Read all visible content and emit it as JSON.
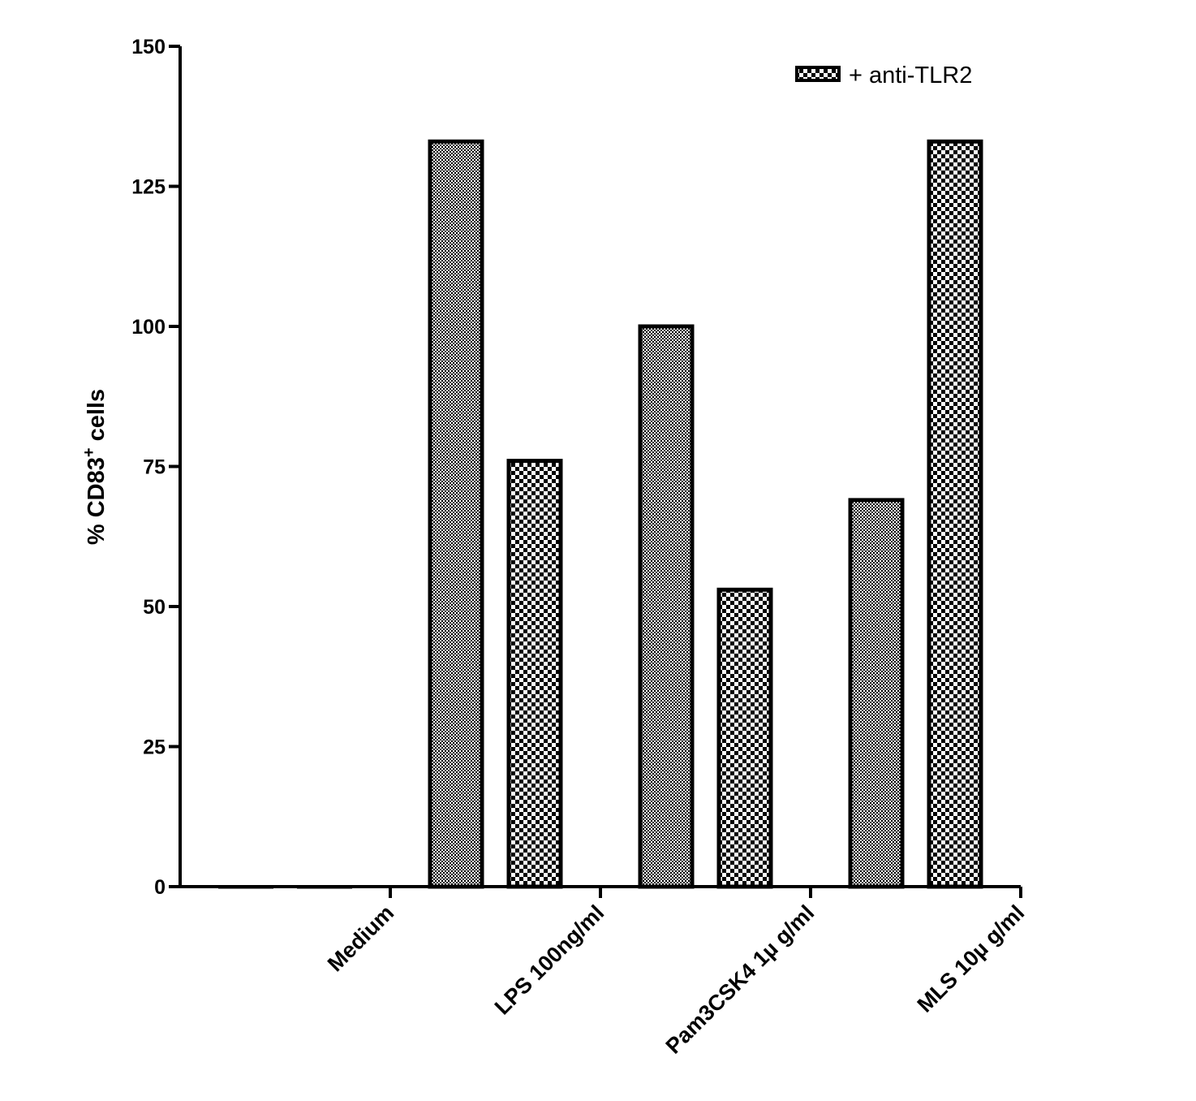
{
  "chart_data": {
    "type": "bar",
    "categories": [
      "Medium",
      "LPS 100ng/ml",
      "Pam3CSK4 1µ g/ml",
      "MLS 10µ g/ml"
    ],
    "series": [
      {
        "values": [
          0,
          133,
          100,
          69
        ],
        "pattern": "fine-dots"
      },
      {
        "name": "+ anti-TLR2",
        "values": [
          0,
          76,
          53,
          133
        ],
        "pattern": "checker"
      }
    ],
    "ylabel": "% CD83",
    "ylabel_superscript": "+",
    "ylabel_suffix": " cells",
    "ylim": [
      0,
      150
    ],
    "yticks": [
      "0",
      "25",
      "50",
      "75",
      "100",
      "125",
      "150"
    ],
    "legend_placement": "top-right",
    "colors": {
      "bar_fill": "#ffffff",
      "pattern": "#000000",
      "axis": "#000000"
    }
  }
}
